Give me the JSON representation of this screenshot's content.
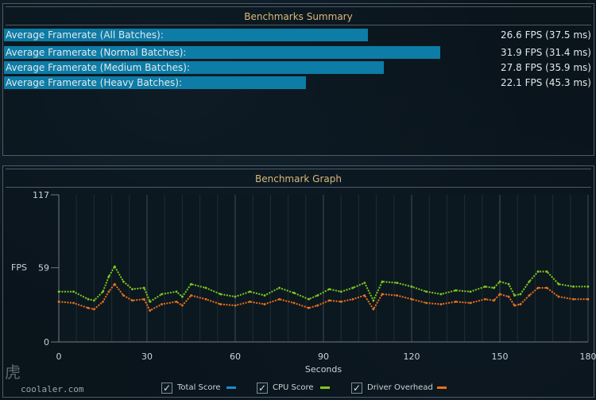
{
  "summary": {
    "title": "Benchmarks Summary",
    "rows": [
      {
        "label": "Average Framerate (All Batches):",
        "value": "26.6 FPS (37.5 ms)",
        "fps": 26.6
      },
      {
        "label": "Average Framerate (Normal Batches):",
        "value": "31.9 FPS (31.4 ms)",
        "fps": 31.9
      },
      {
        "label": "Average Framerate (Medium Batches):",
        "value": "27.8 FPS (35.9 ms)",
        "fps": 27.8
      },
      {
        "label": "Average Framerate (Heavy Batches):",
        "value": "22.1 FPS (45.3 ms)",
        "fps": 22.1
      }
    ]
  },
  "graph": {
    "title": "Benchmark Graph",
    "ylabel": "FPS",
    "xlabel": "Seconds",
    "y_ticks": [
      "117",
      "59",
      "0"
    ],
    "x_ticks": [
      "0",
      "30",
      "60",
      "90",
      "120",
      "150",
      "180"
    ]
  },
  "legend": [
    {
      "label": "Total Score",
      "color": "#1e8bd0",
      "checked": true
    },
    {
      "label": "CPU Score",
      "color": "#7ec81c",
      "checked": true
    },
    {
      "label": "Driver Overhead",
      "color": "#e8701a",
      "checked": true
    }
  ],
  "watermark": "coolaler.com",
  "chart_data": {
    "type": "line",
    "title": "Benchmark Graph",
    "xlabel": "Seconds",
    "ylabel": "FPS",
    "xlim": [
      0,
      180
    ],
    "ylim": [
      0,
      117
    ],
    "series": [
      {
        "name": "CPU Score",
        "x": [
          0,
          5,
          10,
          12,
          15,
          17,
          19,
          22,
          25,
          29,
          31,
          35,
          40,
          42,
          45,
          50,
          55,
          60,
          65,
          70,
          75,
          80,
          85,
          88,
          92,
          96,
          100,
          104,
          107,
          110,
          115,
          120,
          125,
          130,
          135,
          140,
          145,
          148,
          150,
          153,
          155,
          157,
          160,
          163,
          166,
          170,
          175,
          180
        ],
        "y": [
          40,
          40,
          34,
          33,
          40,
          52,
          60,
          48,
          42,
          43,
          32,
          38,
          40,
          36,
          46,
          43,
          38,
          36,
          40,
          37,
          43,
          39,
          34,
          37,
          42,
          40,
          43,
          47,
          33,
          48,
          47,
          44,
          40,
          38,
          41,
          40,
          44,
          43,
          48,
          46,
          37,
          38,
          48,
          56,
          56,
          46,
          44,
          44
        ]
      },
      {
        "name": "Driver Overhead",
        "x": [
          0,
          5,
          10,
          12,
          15,
          17,
          19,
          22,
          25,
          29,
          31,
          35,
          40,
          42,
          45,
          50,
          55,
          60,
          65,
          70,
          75,
          80,
          85,
          88,
          92,
          96,
          100,
          104,
          107,
          110,
          115,
          120,
          125,
          130,
          135,
          140,
          145,
          148,
          150,
          153,
          155,
          157,
          160,
          163,
          166,
          170,
          175,
          180
        ],
        "y": [
          32,
          31,
          27,
          26,
          32,
          40,
          46,
          37,
          33,
          34,
          25,
          30,
          32,
          29,
          37,
          34,
          30,
          29,
          32,
          30,
          34,
          31,
          27,
          29,
          33,
          32,
          34,
          37,
          26,
          38,
          37,
          34,
          31,
          30,
          32,
          31,
          34,
          33,
          38,
          36,
          29,
          30,
          37,
          43,
          43,
          36,
          34,
          34
        ]
      }
    ]
  }
}
